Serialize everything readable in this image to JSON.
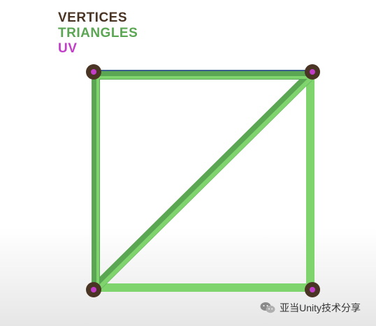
{
  "legend": {
    "vertices": "VERTICES",
    "triangles": "TRIANGLES",
    "uv": "UV"
  },
  "colors": {
    "vertices": "#4a3424",
    "triangles": "#5aa652",
    "triangles_light": "#7fd46e",
    "uv": "#c23ec9",
    "quad_border": "#3a5f8e"
  },
  "watermark": {
    "text": "亚当Unity技术分享",
    "icon": "wechat-icon"
  }
}
